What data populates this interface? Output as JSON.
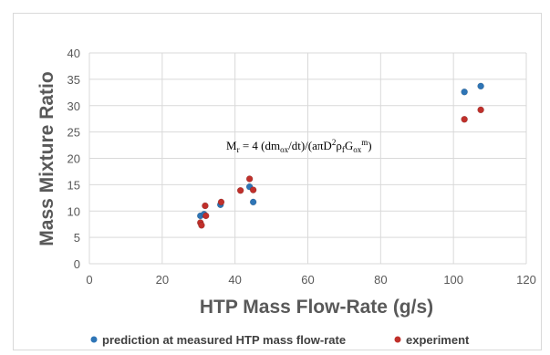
{
  "chart_data": {
    "type": "scatter",
    "title": "",
    "xlabel": "HTP Mass Flow-Rate (g/s)",
    "ylabel": "Mass Mixture Ratio",
    "xlim": [
      0,
      120
    ],
    "ylim": [
      0,
      40
    ],
    "x_ticks": [
      "0",
      "20",
      "40",
      "60",
      "80",
      "100",
      "120"
    ],
    "y_ticks": [
      "0",
      "5",
      "10",
      "15",
      "20",
      "25",
      "30",
      "35",
      "40"
    ],
    "grid": true,
    "legend_position": "bottom",
    "annotation": {
      "main": "M",
      "sub_r": "r",
      "eq1": " = 4 (dm",
      "sub_ox1": "ox",
      "eq2": "/dt)/(aπD",
      "sup_2": "2",
      "rho": "ρ",
      "sub_f": "f",
      "G": "G",
      "sub_ox2": "ox",
      "sup_m": "m",
      "close": ")"
    },
    "series": [
      {
        "name": "prediction at measured HTP mass flow-rate",
        "color": "#2e75b6",
        "points": [
          [
            30.5,
            9.1
          ],
          [
            31.5,
            9.4
          ],
          [
            36.0,
            11.2
          ],
          [
            44.0,
            14.6
          ],
          [
            45.0,
            11.7
          ],
          [
            103.0,
            32.6
          ],
          [
            107.5,
            33.7
          ]
        ]
      },
      {
        "name": "experiment",
        "color": "#c0302b",
        "points": [
          [
            30.5,
            7.8
          ],
          [
            30.8,
            7.3
          ],
          [
            31.8,
            11.0
          ],
          [
            32.0,
            9.1
          ],
          [
            36.2,
            11.7
          ],
          [
            41.5,
            13.9
          ],
          [
            44.0,
            16.1
          ],
          [
            45.0,
            14.0
          ],
          [
            103.0,
            27.4
          ],
          [
            107.5,
            29.2
          ]
        ]
      }
    ]
  }
}
